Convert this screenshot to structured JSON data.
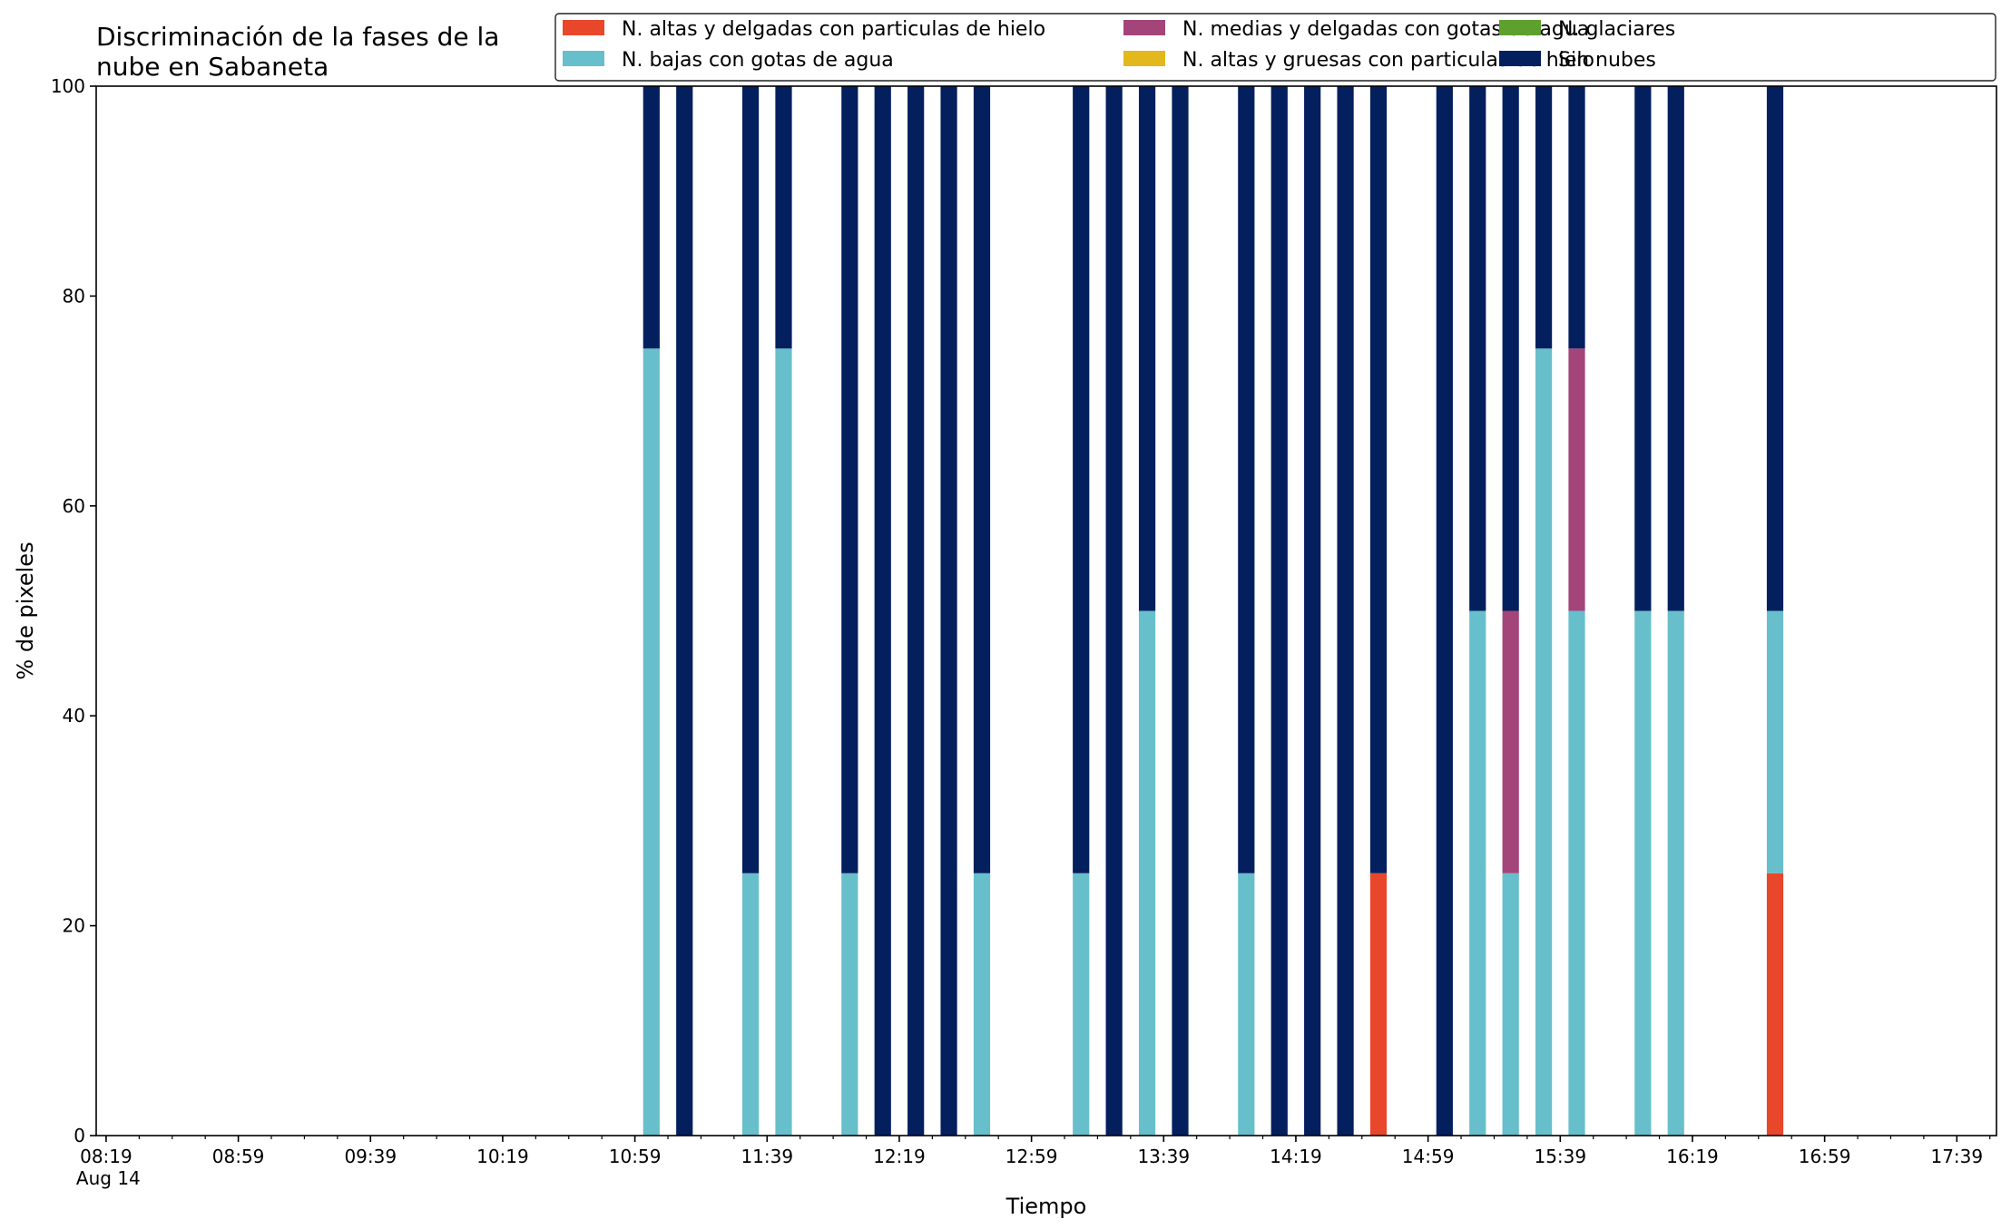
{
  "chart_data": {
    "type": "bar",
    "stacked": true,
    "title_lines": [
      "Discriminación de la fases de la",
      "nube en Sabaneta"
    ],
    "xlabel": "Tiempo",
    "ylabel": "% de pixeles",
    "ylim": [
      0,
      100
    ],
    "yticks": [
      0,
      20,
      40,
      60,
      80,
      100
    ],
    "xlim": [
      "08:16",
      "17:51"
    ],
    "x_major_ticks": [
      "08:19",
      "08:59",
      "09:39",
      "10:19",
      "10:59",
      "11:39",
      "12:19",
      "12:59",
      "13:39",
      "14:19",
      "14:59",
      "15:39",
      "16:19",
      "16:59",
      "17:39"
    ],
    "x_major_tick_labels": [
      "08:19",
      "08:59",
      "09:39",
      "10:19",
      "10:59",
      "11:39",
      "12:19",
      "12:59",
      "13:39",
      "14:19",
      "14:59",
      "15:39",
      "16:19",
      "16:59",
      "17:39"
    ],
    "x_date_label": "Aug 14",
    "x_minor_interval_minutes": 10,
    "bar_width_minutes": 5,
    "legend_position": "top-right",
    "grid": false,
    "x": [
      "11:04",
      "11:14",
      "11:34",
      "11:44",
      "12:04",
      "12:14",
      "12:24",
      "12:34",
      "12:44",
      "13:14",
      "13:24",
      "13:34",
      "13:44",
      "14:04",
      "14:14",
      "14:24",
      "14:34",
      "14:44",
      "15:04",
      "15:14",
      "15:24",
      "15:34",
      "15:44",
      "16:04",
      "16:14",
      "16:44"
    ],
    "series": [
      {
        "name": "N. altas y delgadas con particulas de hielo",
        "color": "#e8472b",
        "values": [
          0,
          0,
          0,
          0,
          0,
          0,
          0,
          0,
          0,
          0,
          0,
          0,
          0,
          0,
          0,
          0,
          0,
          25,
          0,
          0,
          0,
          0,
          0,
          0,
          0,
          25
        ]
      },
      {
        "name": "N. altas y gruesas con particulas de hielo",
        "color": "#e3b81d",
        "values": [
          0,
          0,
          0,
          0,
          0,
          0,
          0,
          0,
          0,
          0,
          0,
          0,
          0,
          0,
          0,
          0,
          0,
          0,
          0,
          0,
          0,
          0,
          0,
          0,
          0,
          0
        ]
      },
      {
        "name": "N. bajas con gotas de agua",
        "color": "#67bfcb",
        "values": [
          75,
          0,
          25,
          75,
          25,
          0,
          0,
          0,
          25,
          25,
          0,
          50,
          0,
          25,
          0,
          0,
          0,
          0,
          0,
          50,
          25,
          75,
          50,
          50,
          50,
          25
        ]
      },
      {
        "name": "N. glaciares",
        "color": "#5da02e",
        "values": [
          0,
          0,
          0,
          0,
          0,
          0,
          0,
          0,
          0,
          0,
          0,
          0,
          0,
          0,
          0,
          0,
          0,
          0,
          0,
          0,
          0,
          0,
          0,
          0,
          0,
          0
        ]
      },
      {
        "name": "N. medias y delgadas con gotas de agua",
        "color": "#a4457a",
        "values": [
          0,
          0,
          0,
          0,
          0,
          0,
          0,
          0,
          0,
          0,
          0,
          0,
          0,
          0,
          0,
          0,
          0,
          0,
          0,
          0,
          25,
          0,
          25,
          0,
          0,
          0
        ]
      },
      {
        "name": "Sin nubes",
        "color": "#041f5e",
        "values": [
          25,
          100,
          75,
          25,
          75,
          100,
          100,
          100,
          75,
          75,
          100,
          50,
          100,
          75,
          100,
          100,
          100,
          75,
          100,
          50,
          50,
          25,
          25,
          50,
          50,
          50
        ]
      }
    ],
    "legend_order": [
      0,
      2,
      4,
      1,
      3,
      5
    ]
  }
}
